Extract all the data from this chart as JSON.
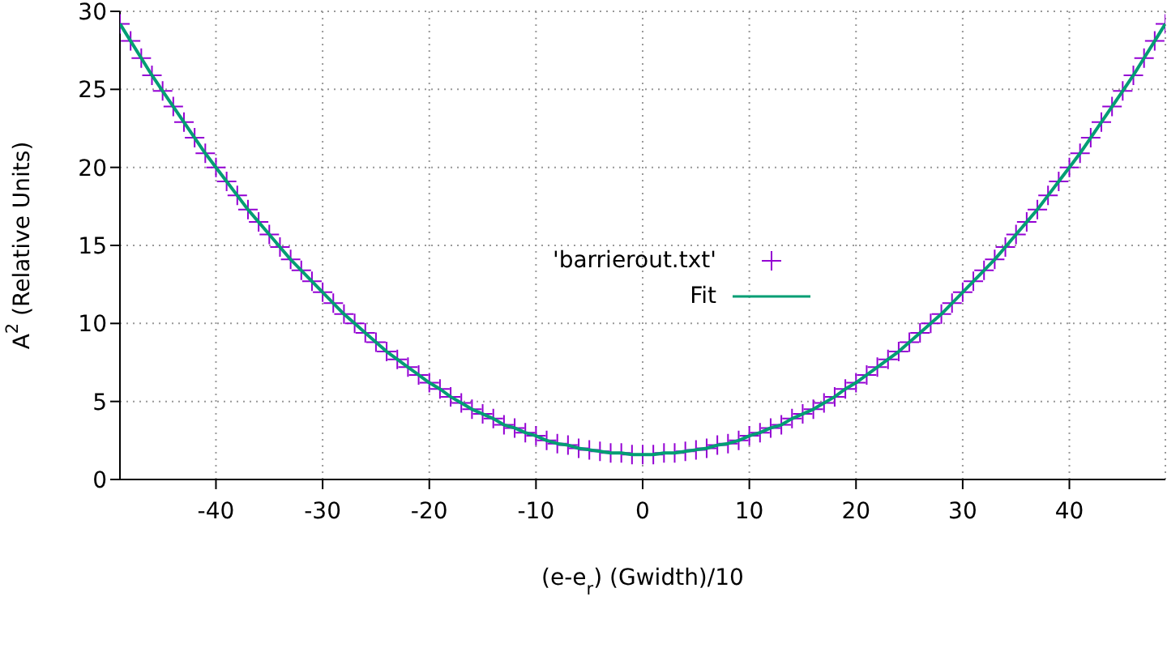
{
  "chart_data": {
    "type": "scatter",
    "xlabel": "(e-e$_{r}$) (Gwidth)/10",
    "ylabel": "A$^{2}$ (Relative Units)",
    "xlim": [
      -49,
      49
    ],
    "xticks": [
      -40,
      -30,
      -20,
      -10,
      0,
      10,
      20,
      30,
      40
    ],
    "ylim": [
      0,
      30
    ],
    "yticks": [
      0,
      5,
      10,
      15,
      20,
      25,
      30
    ],
    "grid": true,
    "legend": "center",
    "series": [
      {
        "name": "'barrierout.txt'",
        "marker": "cross",
        "color": "#9400d3",
        "x": [
          -49,
          -48,
          -47,
          -46,
          -45,
          -44,
          -43,
          -42,
          -41,
          -40,
          -39,
          -38,
          -37,
          -36,
          -35,
          -34,
          -33,
          -32,
          -31,
          -30,
          -29,
          -28,
          -27,
          -26,
          -25,
          -24,
          -23,
          -22,
          -21,
          -20,
          -19,
          -18,
          -17,
          -16,
          -15,
          -14,
          -13,
          -12,
          -11,
          -10,
          -9,
          -8,
          -7,
          -6,
          -5,
          -4,
          -3,
          -2,
          -1,
          0,
          1,
          2,
          3,
          4,
          5,
          6,
          7,
          8,
          9,
          10,
          11,
          12,
          13,
          14,
          15,
          16,
          17,
          18,
          19,
          20,
          21,
          22,
          23,
          24,
          25,
          26,
          27,
          28,
          29,
          30,
          31,
          32,
          33,
          34,
          35,
          36,
          37,
          38,
          39,
          40,
          41,
          42,
          43,
          44,
          45,
          46,
          47,
          48,
          49
        ],
        "values": [
          29.2,
          28.1,
          27.0,
          25.9,
          24.9,
          23.9,
          22.9,
          21.9,
          20.9,
          20.0,
          19.1,
          18.2,
          17.3,
          16.5,
          15.7,
          14.9,
          14.1,
          13.4,
          12.7,
          12.0,
          11.3,
          10.6,
          10.0,
          9.4,
          8.8,
          8.2,
          7.7,
          7.2,
          6.7,
          6.2,
          5.8,
          5.3,
          4.9,
          4.5,
          4.2,
          3.9,
          3.5,
          3.3,
          3.0,
          2.8,
          2.5,
          2.3,
          2.2,
          2.0,
          1.9,
          1.8,
          1.7,
          1.7,
          1.6,
          1.6,
          1.6,
          1.7,
          1.7,
          1.8,
          1.9,
          2.0,
          2.2,
          2.3,
          2.5,
          2.8,
          3.0,
          3.3,
          3.5,
          3.9,
          4.2,
          4.5,
          4.9,
          5.3,
          5.8,
          6.2,
          6.7,
          7.2,
          7.7,
          8.2,
          8.8,
          9.4,
          10.0,
          10.6,
          11.3,
          12.0,
          12.7,
          13.4,
          14.1,
          14.9,
          15.7,
          16.5,
          17.3,
          18.2,
          19.1,
          20.0,
          20.9,
          21.9,
          22.9,
          23.9,
          24.9,
          25.9,
          27.0,
          28.1,
          29.2
        ]
      },
      {
        "name": "Fit",
        "type": "line",
        "color": "#009e73",
        "x": [
          -49,
          -48,
          -47,
          -46,
          -45,
          -44,
          -43,
          -42,
          -41,
          -40,
          -39,
          -38,
          -37,
          -36,
          -35,
          -34,
          -33,
          -32,
          -31,
          -30,
          -29,
          -28,
          -27,
          -26,
          -25,
          -24,
          -23,
          -22,
          -21,
          -20,
          -19,
          -18,
          -17,
          -16,
          -15,
          -14,
          -13,
          -12,
          -11,
          -10,
          -9,
          -8,
          -7,
          -6,
          -5,
          -4,
          -3,
          -2,
          -1,
          0,
          1,
          2,
          3,
          4,
          5,
          6,
          7,
          8,
          9,
          10,
          11,
          12,
          13,
          14,
          15,
          16,
          17,
          18,
          19,
          20,
          21,
          22,
          23,
          24,
          25,
          26,
          27,
          28,
          29,
          30,
          31,
          32,
          33,
          34,
          35,
          36,
          37,
          38,
          39,
          40,
          41,
          42,
          43,
          44,
          45,
          46,
          47,
          48,
          49
        ],
        "values": [
          29.2,
          28.1,
          27.0,
          25.9,
          24.9,
          23.9,
          22.9,
          21.9,
          20.9,
          20.0,
          19.1,
          18.2,
          17.3,
          16.5,
          15.7,
          14.9,
          14.1,
          13.4,
          12.7,
          12.0,
          11.3,
          10.6,
          10.0,
          9.4,
          8.8,
          8.2,
          7.7,
          7.2,
          6.7,
          6.2,
          5.8,
          5.3,
          4.9,
          4.5,
          4.2,
          3.9,
          3.5,
          3.3,
          3.0,
          2.8,
          2.5,
          2.3,
          2.2,
          2.0,
          1.9,
          1.8,
          1.7,
          1.7,
          1.6,
          1.6,
          1.6,
          1.7,
          1.7,
          1.8,
          1.9,
          2.0,
          2.2,
          2.3,
          2.5,
          2.8,
          3.0,
          3.3,
          3.5,
          3.9,
          4.2,
          4.5,
          4.9,
          5.3,
          5.8,
          6.2,
          6.7,
          7.2,
          7.7,
          8.2,
          8.8,
          9.4,
          10.0,
          10.6,
          11.3,
          12.0,
          12.7,
          13.4,
          14.1,
          14.9,
          15.7,
          16.5,
          17.3,
          18.2,
          19.1,
          20.0,
          20.9,
          21.9,
          22.9,
          23.9,
          24.9,
          25.9,
          27.0,
          28.1,
          29.2
        ]
      }
    ]
  }
}
